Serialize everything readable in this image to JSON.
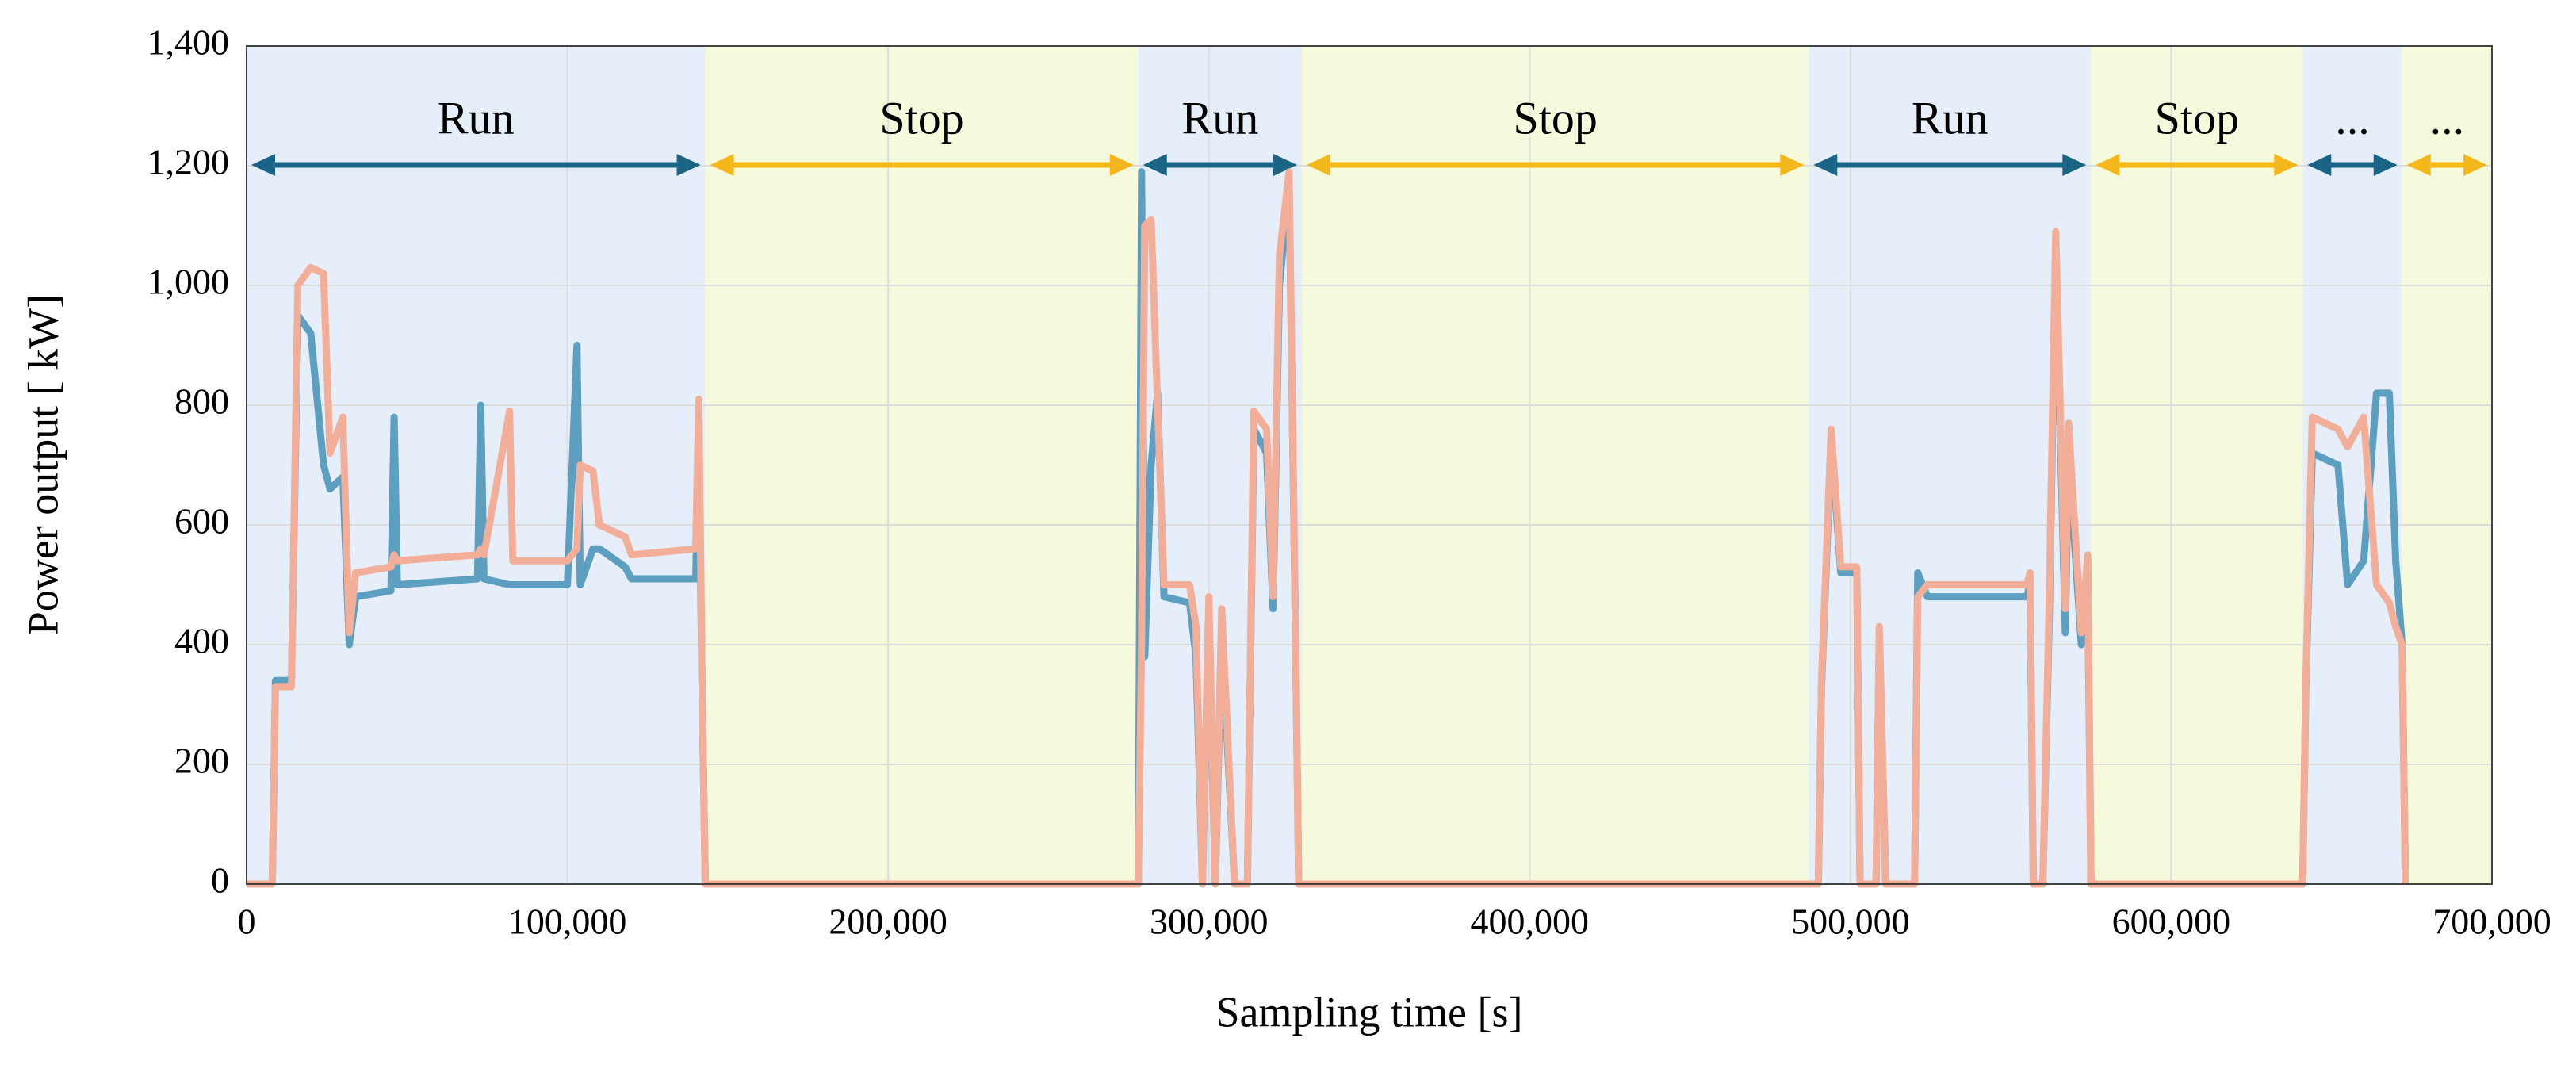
{
  "chart_data": {
    "type": "line",
    "ylabel": "Power output [ kW]",
    "xlabel": "Sampling time [s]",
    "xlim": [
      0,
      700000
    ],
    "xticks": [
      0,
      {
        "value": 100000,
        "label": "100,000"
      },
      {
        "value": 200000,
        "label": "200,000"
      },
      {
        "value": 300000,
        "label": "300,000"
      },
      {
        "value": 400000,
        "label": "400,000"
      },
      {
        "value": 500000,
        "label": "500,000"
      },
      {
        "value": 600000,
        "label": "600,000"
      },
      {
        "value": 700000,
        "label": "700,000"
      }
    ],
    "ylim": [
      0,
      1400
    ],
    "yticks": [
      0,
      200,
      400,
      600,
      800,
      {
        "value": 1000,
        "label": "1,000"
      },
      {
        "value": 1200,
        "label": "1,200"
      },
      {
        "value": 1400,
        "label": "1,400"
      }
    ],
    "grid": true,
    "regions": [
      {
        "label": "Run",
        "start": 0,
        "end": 143000,
        "color": "#e6eff9",
        "arrow_color": "#1a6585"
      },
      {
        "label": "Stop",
        "start": 143000,
        "end": 278000,
        "color": "#f6fadc",
        "arrow_color": "#f4b81c"
      },
      {
        "label": "Run",
        "start": 278000,
        "end": 329000,
        "color": "#e6eff9",
        "arrow_color": "#1a6585"
      },
      {
        "label": "Stop",
        "start": 329000,
        "end": 487000,
        "color": "#f6fadc",
        "arrow_color": "#f4b81c"
      },
      {
        "label": "Run",
        "start": 487000,
        "end": 575000,
        "color": "#e6eff9",
        "arrow_color": "#1a6585"
      },
      {
        "label": "Stop",
        "start": 575000,
        "end": 641000,
        "color": "#f6fadc",
        "arrow_color": "#f4b81c"
      },
      {
        "label": "...",
        "start": 641000,
        "end": 672000,
        "color": "#e6eff9",
        "arrow_color": "#1a6585"
      },
      {
        "label": "...",
        "start": 672000,
        "end": 700000,
        "color": "#f6fadc",
        "arrow_color": "#f4b81c"
      }
    ],
    "x": [
      0,
      8000,
      9000,
      14000,
      16000,
      20000,
      24000,
      26000,
      30000,
      32000,
      34000,
      45000,
      46000,
      47000,
      72000,
      73000,
      74000,
      82000,
      83000,
      100000,
      103000,
      104000,
      108000,
      110000,
      118000,
      120000,
      140000,
      141000,
      142000,
      143000,
      278000,
      279000,
      280000,
      282000,
      284000,
      286000,
      294000,
      296000,
      298000,
      300000,
      302000,
      304000,
      308000,
      312000,
      314000,
      318000,
      320000,
      322000,
      325000,
      327000,
      328000,
      490000,
      491000,
      494000,
      497000,
      502000,
      503000,
      508000,
      509000,
      511000,
      520000,
      521000,
      524000,
      555000,
      556000,
      557000,
      560000,
      562000,
      564000,
      567000,
      568000,
      572000,
      574000,
      575000,
      641000,
      642000,
      644000,
      652000,
      655000,
      660000,
      664000,
      668000,
      670000,
      672000,
      673000
    ],
    "series": [
      {
        "color": "#5d9fc0",
        "values": [
          0,
          0,
          340,
          340,
          950,
          920,
          700,
          660,
          680,
          400,
          480,
          490,
          780,
          500,
          510,
          800,
          510,
          500,
          500,
          500,
          900,
          500,
          560,
          560,
          530,
          510,
          510,
          720,
          330,
          0,
          0,
          1190,
          380,
          700,
          820,
          480,
          470,
          380,
          0,
          450,
          0,
          420,
          0,
          0,
          760,
          720,
          460,
          1000,
          1170,
          420,
          0,
          0,
          330,
          740,
          520,
          520,
          0,
          0,
          420,
          0,
          0,
          520,
          480,
          480,
          500,
          0,
          0,
          450,
          1060,
          420,
          720,
          400,
          500,
          0,
          0,
          330,
          720,
          700,
          500,
          540,
          820,
          820,
          540,
          400,
          0
        ]
      },
      {
        "color": "#f2ae98",
        "values": [
          0,
          0,
          330,
          330,
          1000,
          1030,
          1020,
          720,
          780,
          420,
          520,
          530,
          550,
          540,
          550,
          560,
          550,
          790,
          540,
          540,
          560,
          700,
          690,
          600,
          580,
          550,
          560,
          810,
          330,
          0,
          0,
          400,
          1100,
          1110,
          800,
          500,
          500,
          430,
          0,
          480,
          0,
          460,
          0,
          0,
          790,
          760,
          480,
          1050,
          1190,
          430,
          0,
          0,
          340,
          760,
          530,
          530,
          0,
          0,
          430,
          0,
          0,
          480,
          500,
          500,
          520,
          0,
          0,
          480,
          1090,
          460,
          770,
          420,
          550,
          0,
          0,
          340,
          780,
          760,
          730,
          780,
          500,
          470,
          430,
          400,
          0
        ]
      }
    ]
  }
}
